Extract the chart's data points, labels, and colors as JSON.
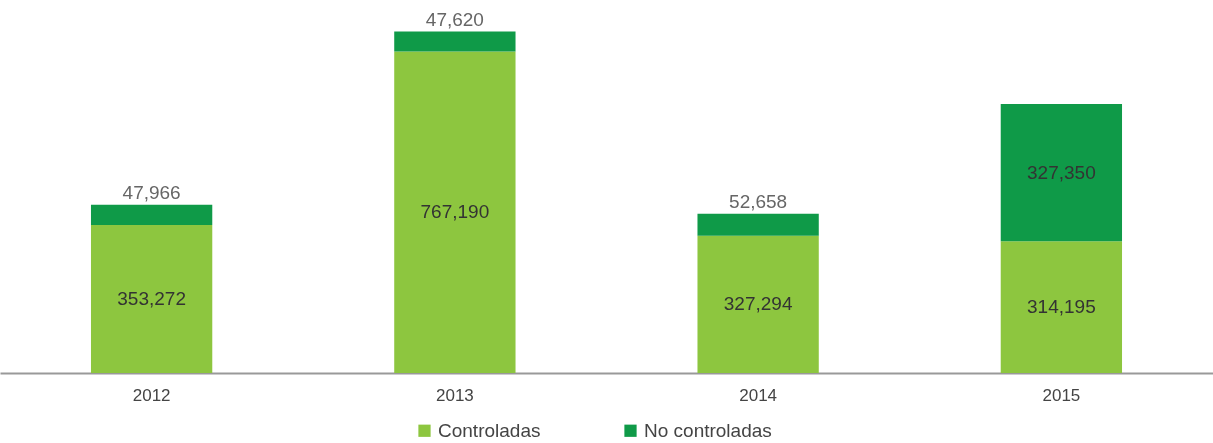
{
  "chart_data": {
    "type": "bar",
    "stacked": true,
    "legend": "bottom",
    "categories": [
      "2012",
      "2013",
      "2014",
      "2015"
    ],
    "series": [
      {
        "name": "Controladas",
        "color": "#8dc63f",
        "values": [
          353272,
          767190,
          327294,
          314195
        ],
        "value_labels": [
          "353,272",
          "767,190",
          "327,294",
          "314,195"
        ]
      },
      {
        "name": "No controladas",
        "color": "#0f9a48",
        "values": [
          47966,
          47620,
          52658,
          327350
        ],
        "value_labels": [
          "47,966",
          "47,620",
          "52,658",
          "327,350"
        ]
      }
    ]
  }
}
